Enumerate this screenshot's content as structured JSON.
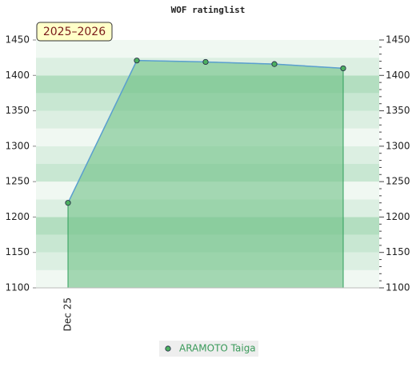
{
  "chart_data": {
    "type": "area",
    "title": "WOF ratinglist",
    "annotation": "2025–2026",
    "categories": [
      "Dec 25",
      null,
      null,
      null,
      null
    ],
    "series": [
      {
        "name": "ARAMOTO Taiga",
        "color": "#6fc187",
        "line_color": "#5b9fd0",
        "values": [
          1220,
          1421,
          1419,
          1416,
          1410
        ]
      }
    ],
    "ylim": [
      1100,
      1450
    ],
    "yticks": [
      1100,
      1150,
      1200,
      1250,
      1300,
      1350,
      1400,
      1450
    ],
    "right_axis": true,
    "legend": "bottom"
  }
}
